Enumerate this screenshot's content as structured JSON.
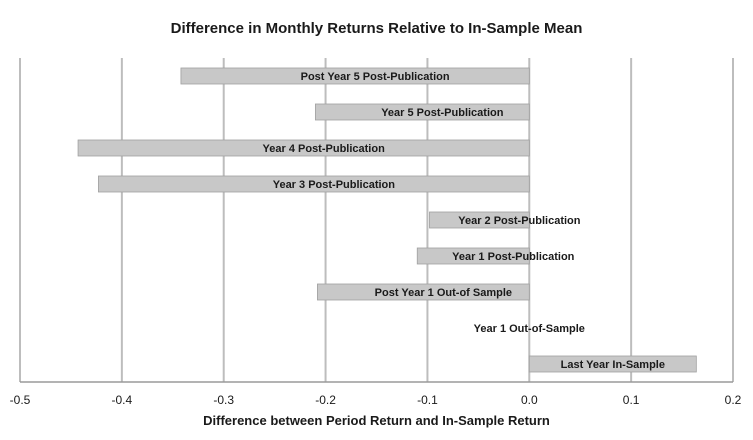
{
  "chart_data": {
    "type": "bar",
    "orientation": "horizontal",
    "title": "Difference in Monthly Returns Relative to In-Sample Mean",
    "xlabel": "Difference between Period Return and In-Sample Return",
    "ylabel": "",
    "xlim": [
      -0.5,
      0.2
    ],
    "xticks": [
      "-0.5",
      "-0.4",
      "-0.3",
      "-0.2",
      "-0.1",
      "0.0",
      "0.1",
      "0.2"
    ],
    "grid": "vertical",
    "bar_color": "#c8c8c8",
    "bar_edge_color": "#a0a0a0",
    "categories": [
      "Post Year 5 Post-Publication",
      "Year 5 Post-Publication",
      "Year 4 Post-Publication",
      "Year 3 Post-Publication",
      "Year 2 Post-Publication",
      "Year 1 Post-Publication",
      "Post Year 1 Out-of Sample",
      "Year 1 Out-of-Sample",
      "Last Year In-Sample"
    ],
    "values": [
      -0.342,
      -0.21,
      -0.443,
      -0.423,
      -0.098,
      -0.11,
      -0.208,
      0.0,
      0.164
    ]
  }
}
